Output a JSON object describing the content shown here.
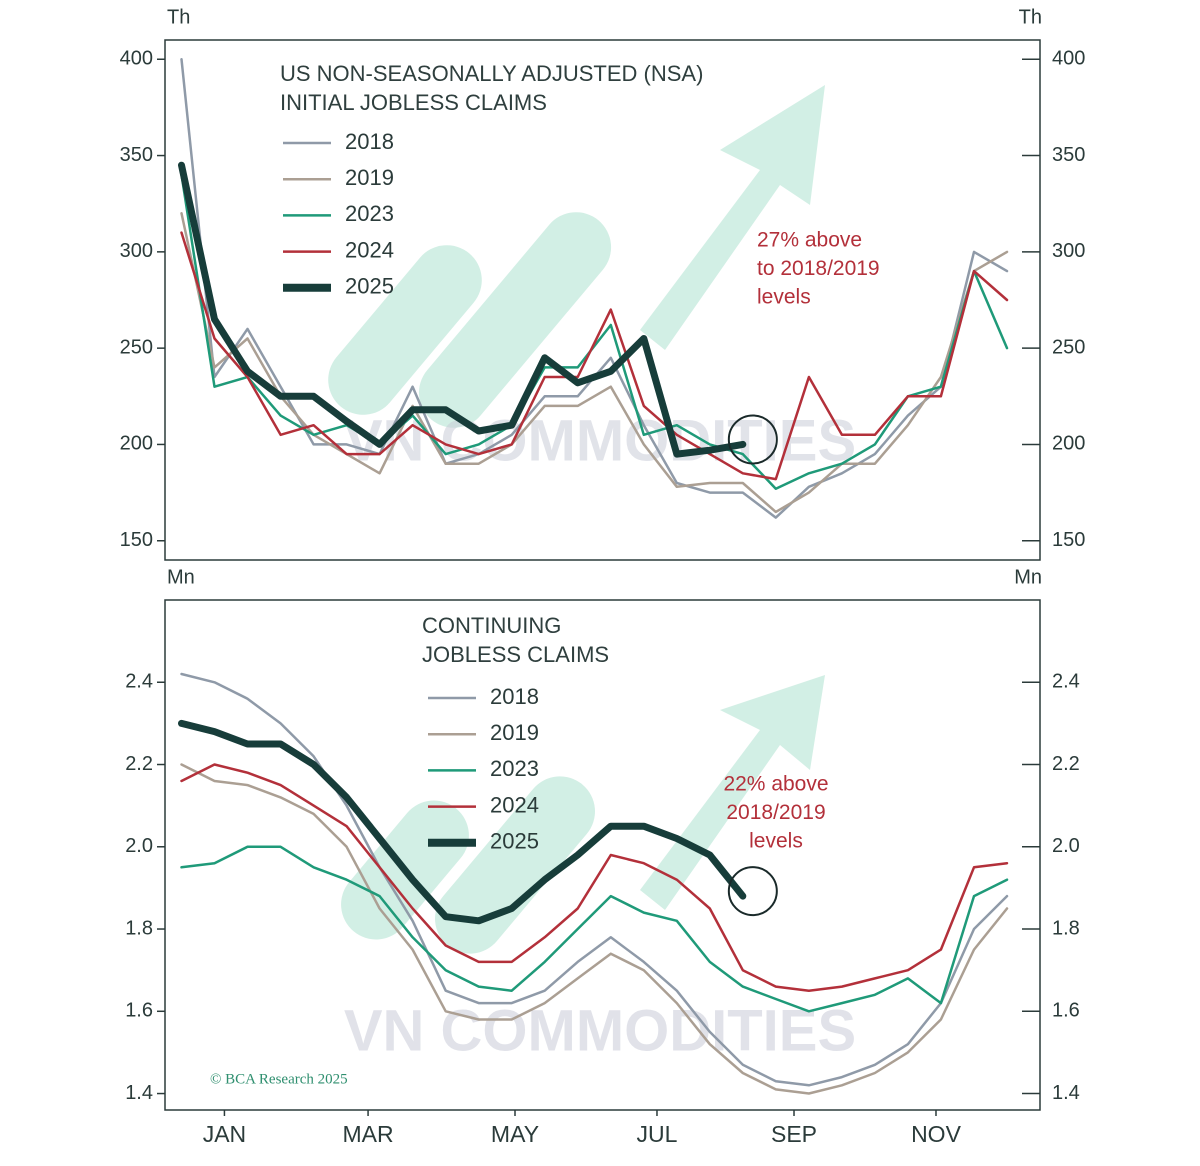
{
  "watermark": "VN COMMODITIES",
  "credit": "© BCA Research 2025",
  "chart_data": [
    {
      "type": "line",
      "title": [
        "US NON-SEASONALLY ADJUSTED (NSA)",
        "INITIAL JOBLESS CLAIMS"
      ],
      "unit_label": "Th",
      "annotation": [
        "27% above",
        "to 2018/2019",
        "levels"
      ],
      "x": [
        1,
        3,
        5,
        7,
        9,
        11,
        13,
        15,
        17,
        19,
        21,
        23,
        25,
        27,
        29,
        31,
        33,
        35,
        37,
        39,
        41,
        43,
        45,
        47,
        49,
        51
      ],
      "xlim": [
        0,
        53
      ],
      "ylim": [
        140,
        410
      ],
      "yticks": [
        150,
        200,
        250,
        300,
        350,
        400
      ],
      "legend": "upper left",
      "series": [
        {
          "name": "2018",
          "color": "#8f9aa8",
          "values": [
            400,
            235,
            260,
            230,
            200,
            200,
            195,
            230,
            190,
            195,
            205,
            225,
            225,
            245,
            210,
            180,
            175,
            175,
            162,
            178,
            185,
            195,
            215,
            230,
            300,
            290
          ]
        },
        {
          "name": "2019",
          "color": "#ab9f93",
          "values": [
            320,
            240,
            255,
            225,
            205,
            195,
            185,
            220,
            190,
            190,
            200,
            220,
            220,
            230,
            200,
            178,
            180,
            180,
            165,
            175,
            190,
            190,
            210,
            235,
            290,
            300
          ]
        },
        {
          "name": "2023",
          "color": "#1f9a79",
          "values": [
            340,
            230,
            235,
            215,
            205,
            210,
            200,
            215,
            195,
            200,
            210,
            240,
            240,
            262,
            205,
            210,
            200,
            195,
            177,
            185,
            190,
            200,
            225,
            230,
            290,
            250
          ]
        },
        {
          "name": "2024",
          "color": "#b3303a",
          "values": [
            310,
            255,
            235,
            205,
            210,
            195,
            195,
            210,
            200,
            195,
            200,
            235,
            235,
            270,
            220,
            205,
            195,
            185,
            182,
            235,
            205,
            205,
            225,
            225,
            290,
            275
          ]
        },
        {
          "name": "2025",
          "color": "#173d3a",
          "values": [
            345,
            265,
            238,
            225,
            225,
            212,
            200,
            218,
            218,
            207,
            210,
            245,
            232,
            238,
            255,
            195,
            197,
            200,
            null,
            null,
            null,
            null,
            null,
            null,
            null,
            null
          ]
        }
      ]
    },
    {
      "type": "line",
      "title": [
        "CONTINUING",
        "JOBLESS CLAIMS"
      ],
      "unit_label": "Mn",
      "annotation": [
        "22% above",
        "2018/2019",
        "levels"
      ],
      "x": [
        1,
        3,
        5,
        7,
        9,
        11,
        13,
        15,
        17,
        19,
        21,
        23,
        25,
        27,
        29,
        31,
        33,
        35,
        37,
        39,
        41,
        43,
        45,
        47,
        49,
        51
      ],
      "xlim": [
        0,
        53
      ],
      "xticks": [
        {
          "value": 3.6,
          "label": "JAN"
        },
        {
          "value": 12.3,
          "label": "MAR"
        },
        {
          "value": 21.2,
          "label": "MAY"
        },
        {
          "value": 29.8,
          "label": "JUL"
        },
        {
          "value": 38.1,
          "label": "SEP"
        },
        {
          "value": 46.7,
          "label": "NOV"
        }
      ],
      "ylim": [
        1.36,
        2.6
      ],
      "yticks": [
        {
          "value": 1.4,
          "label": "1.4"
        },
        {
          "value": 1.6,
          "label": "1.6"
        },
        {
          "value": 1.8,
          "label": "1.8"
        },
        {
          "value": 2.0,
          "label": "2.0"
        },
        {
          "value": 2.2,
          "label": "2.2"
        },
        {
          "value": 2.4,
          "label": "2.4"
        }
      ],
      "legend": "upper left",
      "series": [
        {
          "name": "2018",
          "color": "#8f9aa8",
          "values": [
            2.42,
            2.4,
            2.36,
            2.3,
            2.22,
            2.1,
            1.95,
            1.82,
            1.65,
            1.62,
            1.62,
            1.65,
            1.72,
            1.78,
            1.72,
            1.65,
            1.55,
            1.47,
            1.43,
            1.42,
            1.44,
            1.47,
            1.52,
            1.62,
            1.8,
            1.88
          ]
        },
        {
          "name": "2019",
          "color": "#ab9f93",
          "values": [
            2.2,
            2.16,
            2.15,
            2.12,
            2.08,
            2.0,
            1.85,
            1.75,
            1.6,
            1.58,
            1.58,
            1.62,
            1.68,
            1.74,
            1.7,
            1.62,
            1.52,
            1.45,
            1.41,
            1.4,
            1.42,
            1.45,
            1.5,
            1.58,
            1.75,
            1.85
          ]
        },
        {
          "name": "2023",
          "color": "#1f9a79",
          "values": [
            1.95,
            1.96,
            2.0,
            2.0,
            1.95,
            1.92,
            1.88,
            1.78,
            1.7,
            1.66,
            1.65,
            1.72,
            1.8,
            1.88,
            1.84,
            1.82,
            1.72,
            1.66,
            1.63,
            1.6,
            1.62,
            1.64,
            1.68,
            1.62,
            1.88,
            1.92
          ]
        },
        {
          "name": "2024",
          "color": "#b3303a",
          "values": [
            2.16,
            2.2,
            2.18,
            2.15,
            2.1,
            2.05,
            1.95,
            1.85,
            1.76,
            1.72,
            1.72,
            1.78,
            1.85,
            1.98,
            1.96,
            1.92,
            1.85,
            1.7,
            1.66,
            1.65,
            1.66,
            1.68,
            1.7,
            1.75,
            1.95,
            1.96
          ]
        },
        {
          "name": "2025",
          "color": "#173d3a",
          "values": [
            2.3,
            2.28,
            2.25,
            2.25,
            2.2,
            2.12,
            2.02,
            1.92,
            1.83,
            1.82,
            1.85,
            1.92,
            1.98,
            2.05,
            2.05,
            2.02,
            1.98,
            1.88,
            null,
            null,
            null,
            null,
            null,
            null,
            null,
            null
          ]
        }
      ]
    }
  ]
}
